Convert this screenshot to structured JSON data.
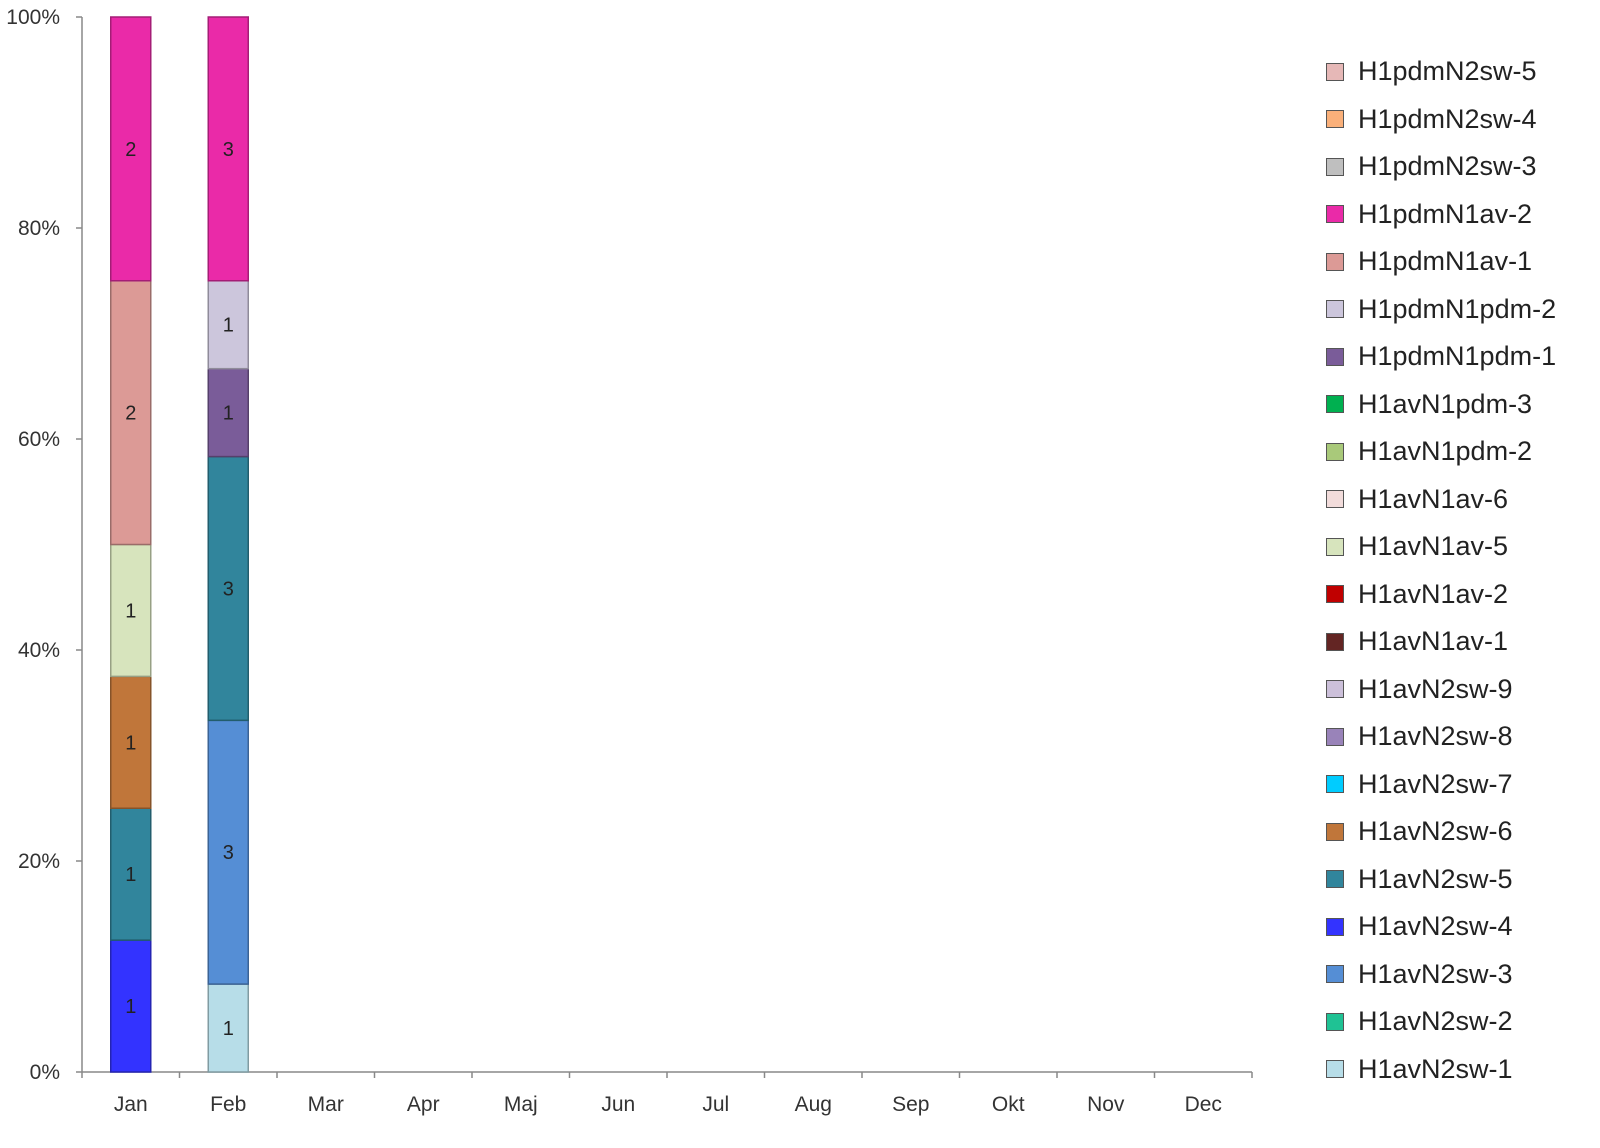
{
  "chart_data": {
    "type": "bar",
    "stacked": "percent",
    "categories": [
      "Jan",
      "Feb",
      "Mar",
      "Apr",
      "Maj",
      "Jun",
      "Jul",
      "Aug",
      "Sep",
      "Okt",
      "Nov",
      "Dec"
    ],
    "y_ticks": [
      "0%",
      "20%",
      "40%",
      "60%",
      "80%",
      "100%"
    ],
    "ylim": [
      0,
      100
    ],
    "grid": false,
    "legend_position": "right",
    "series": [
      {
        "name": "H1avN2sw-1",
        "color": "#b7dde8",
        "values": [
          0,
          1,
          0,
          0,
          0,
          0,
          0,
          0,
          0,
          0,
          0,
          0
        ]
      },
      {
        "name": "H1avN2sw-2",
        "color": "#1fc294",
        "values": [
          0,
          0,
          0,
          0,
          0,
          0,
          0,
          0,
          0,
          0,
          0,
          0
        ]
      },
      {
        "name": "H1avN2sw-3",
        "color": "#558ed5",
        "values": [
          0,
          3,
          0,
          0,
          0,
          0,
          0,
          0,
          0,
          0,
          0,
          0
        ]
      },
      {
        "name": "H1avN2sw-4",
        "color": "#3333ff",
        "values": [
          1,
          0,
          0,
          0,
          0,
          0,
          0,
          0,
          0,
          0,
          0,
          0
        ]
      },
      {
        "name": "H1avN2sw-5",
        "color": "#31859c",
        "values": [
          1,
          3,
          0,
          0,
          0,
          0,
          0,
          0,
          0,
          0,
          0,
          0
        ]
      },
      {
        "name": "H1avN2sw-6",
        "color": "#c0763a",
        "values": [
          1,
          0,
          0,
          0,
          0,
          0,
          0,
          0,
          0,
          0,
          0,
          0
        ]
      },
      {
        "name": "H1avN2sw-7",
        "color": "#00ccff",
        "values": [
          0,
          0,
          0,
          0,
          0,
          0,
          0,
          0,
          0,
          0,
          0,
          0
        ]
      },
      {
        "name": "H1avN2sw-8",
        "color": "#9983b9",
        "values": [
          0,
          0,
          0,
          0,
          0,
          0,
          0,
          0,
          0,
          0,
          0,
          0
        ]
      },
      {
        "name": "H1avN2sw-9",
        "color": "#ccc0da",
        "values": [
          0,
          0,
          0,
          0,
          0,
          0,
          0,
          0,
          0,
          0,
          0,
          0
        ]
      },
      {
        "name": "H1avN1av-1",
        "color": "#632523",
        "values": [
          0,
          0,
          0,
          0,
          0,
          0,
          0,
          0,
          0,
          0,
          0,
          0
        ]
      },
      {
        "name": "H1avN1av-2",
        "color": "#c00000",
        "values": [
          0,
          0,
          0,
          0,
          0,
          0,
          0,
          0,
          0,
          0,
          0,
          0
        ]
      },
      {
        "name": "H1avN1av-5",
        "color": "#d7e4bd",
        "values": [
          1,
          0,
          0,
          0,
          0,
          0,
          0,
          0,
          0,
          0,
          0,
          0
        ]
      },
      {
        "name": "H1avN1av-6",
        "color": "#f2dcdb",
        "values": [
          0,
          0,
          0,
          0,
          0,
          0,
          0,
          0,
          0,
          0,
          0,
          0
        ]
      },
      {
        "name": "H1avN1pdm-2",
        "color": "#a9c97a",
        "values": [
          0,
          0,
          0,
          0,
          0,
          0,
          0,
          0,
          0,
          0,
          0,
          0
        ]
      },
      {
        "name": "H1avN1pdm-3",
        "color": "#00b050",
        "values": [
          0,
          0,
          0,
          0,
          0,
          0,
          0,
          0,
          0,
          0,
          0,
          0
        ]
      },
      {
        "name": "H1pdmN1pdm-1",
        "color": "#7a5c99",
        "values": [
          0,
          1,
          0,
          0,
          0,
          0,
          0,
          0,
          0,
          0,
          0,
          0
        ]
      },
      {
        "name": "H1pdmN1pdm-2",
        "color": "#ccc6dc",
        "values": [
          0,
          1,
          0,
          0,
          0,
          0,
          0,
          0,
          0,
          0,
          0,
          0
        ]
      },
      {
        "name": "H1pdmN1av-1",
        "color": "#dc9a96",
        "values": [
          2,
          0,
          0,
          0,
          0,
          0,
          0,
          0,
          0,
          0,
          0,
          0
        ]
      },
      {
        "name": "H1pdmN1av-2",
        "color": "#ea2aa8",
        "values": [
          2,
          3,
          0,
          0,
          0,
          0,
          0,
          0,
          0,
          0,
          0,
          0
        ]
      },
      {
        "name": "H1pdmN2sw-3",
        "color": "#bfbfbf",
        "values": [
          0,
          0,
          0,
          0,
          0,
          0,
          0,
          0,
          0,
          0,
          0,
          0
        ]
      },
      {
        "name": "H1pdmN2sw-4",
        "color": "#fab07a",
        "values": [
          0,
          0,
          0,
          0,
          0,
          0,
          0,
          0,
          0,
          0,
          0,
          0
        ]
      },
      {
        "name": "H1pdmN2sw-5",
        "color": "#e6b8b7",
        "values": [
          0,
          0,
          0,
          0,
          0,
          0,
          0,
          0,
          0,
          0,
          0,
          0
        ]
      }
    ]
  }
}
